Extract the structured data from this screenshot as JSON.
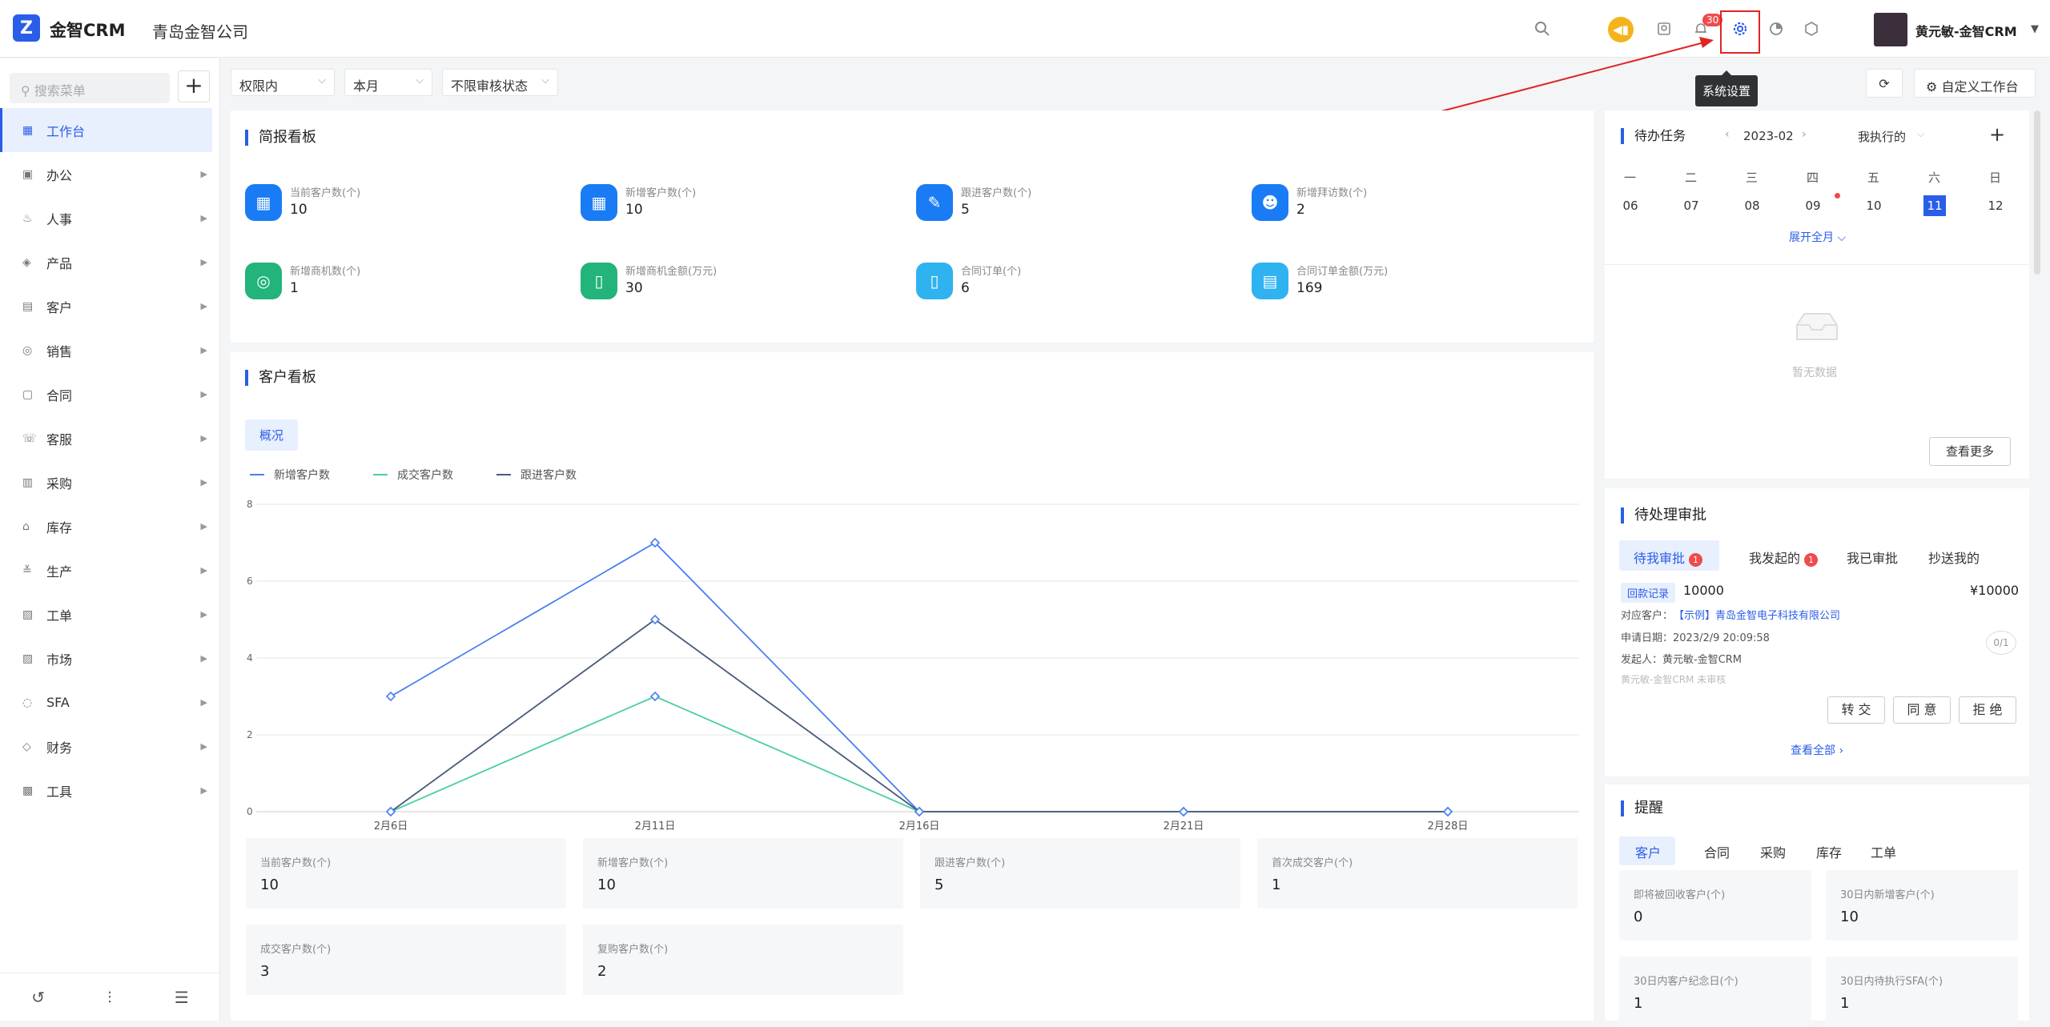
{
  "header": {
    "brand": "金智CRM",
    "company": "青岛金智公司",
    "notification_count": "30",
    "user_name": "黄元敏-金智CRM",
    "tooltip": "系统设置",
    "icons": [
      "search-icon",
      "speaker-icon",
      "contact-icon",
      "bell-icon",
      "gear-icon",
      "pie-chart-icon",
      "cube-icon",
      "caret-down-icon"
    ]
  },
  "sidebar": {
    "search_placeholder": "搜索菜单",
    "items": [
      {
        "label": "工作台",
        "icon": "▦",
        "active": true
      },
      {
        "label": "办公",
        "icon": "▣"
      },
      {
        "label": "人事",
        "icon": "♨"
      },
      {
        "label": "产品",
        "icon": "◈"
      },
      {
        "label": "客户",
        "icon": "▤"
      },
      {
        "label": "销售",
        "icon": "◎"
      },
      {
        "label": "合同",
        "icon": "▢"
      },
      {
        "label": "客服",
        "icon": "☏"
      },
      {
        "label": "采购",
        "icon": "▥"
      },
      {
        "label": "库存",
        "icon": "⌂"
      },
      {
        "label": "生产",
        "icon": "≚"
      },
      {
        "label": "工单",
        "icon": "▧"
      },
      {
        "label": "市场",
        "icon": "▨"
      },
      {
        "label": "SFA",
        "icon": "◌"
      },
      {
        "label": "财务",
        "icon": "◇"
      },
      {
        "label": "工具",
        "icon": "▩"
      }
    ]
  },
  "filters": {
    "scope": "权限内",
    "period": "本月",
    "audit": "不限审核状态"
  },
  "toolbar": {
    "custom_label": "自定义工作台"
  },
  "brief": {
    "title": "简报看板",
    "stats": [
      {
        "label": "当前客户数(个)",
        "value": "10",
        "color": "#1a7cf5",
        "icon": "▦"
      },
      {
        "label": "新增客户数(个)",
        "value": "10",
        "color": "#1a7cf5",
        "icon": "▦"
      },
      {
        "label": "跟进客户数(个)",
        "value": "5",
        "color": "#1a7cf5",
        "icon": "✎"
      },
      {
        "label": "新增拜访数(个)",
        "value": "2",
        "color": "#1a7cf5",
        "icon": "☻"
      },
      {
        "label": "新增商机数(个)",
        "value": "1",
        "color": "#22b47a",
        "icon": "◎"
      },
      {
        "label": "新增商机金额(万元)",
        "value": "30",
        "color": "#22b47a",
        "icon": "▯"
      },
      {
        "label": "合同订单(个)",
        "value": "6",
        "color": "#2fb3f0",
        "icon": "▯"
      },
      {
        "label": "合同订单金额(万元)",
        "value": "169",
        "color": "#2fb3f0",
        "icon": "▤"
      }
    ]
  },
  "customer_board": {
    "title": "客户看板",
    "tab": "概况",
    "boxes": [
      {
        "label": "当前客户数(个)",
        "value": "10"
      },
      {
        "label": "新增客户数(个)",
        "value": "10"
      },
      {
        "label": "跟进客户数(个)",
        "value": "5"
      },
      {
        "label": "首次成交客户(个)",
        "value": "1"
      },
      {
        "label": "成交客户数(个)",
        "value": "3"
      },
      {
        "label": "复购客户数(个)",
        "value": "2"
      }
    ]
  },
  "chart_data": {
    "type": "line",
    "categories": [
      "2月6日",
      "2月11日",
      "2月16日",
      "2月21日",
      "2月28日"
    ],
    "ylim": [
      0,
      8
    ],
    "yticks": [
      "0",
      "2",
      "4",
      "6",
      "8"
    ],
    "grid": true,
    "legend_position": "top-left",
    "series": [
      {
        "name": "新增客户数",
        "color": "#4a7ff0",
        "values": [
          3,
          7,
          0,
          0,
          0
        ]
      },
      {
        "name": "成交客户数",
        "color": "#4ccfa0",
        "values": [
          0,
          3,
          0,
          0,
          0
        ]
      },
      {
        "name": "跟进客户数",
        "color": "#4a5a7a",
        "values": [
          0,
          5,
          0,
          0,
          0
        ]
      }
    ]
  },
  "todo": {
    "title": "待办任务",
    "month": "2023-02",
    "filter": "我执行的",
    "weekdays": [
      "一",
      "二",
      "三",
      "四",
      "五",
      "六",
      "日"
    ],
    "days": [
      "06",
      "07",
      "08",
      "09",
      "10",
      "11",
      "12"
    ],
    "expand": "展开全月",
    "empty": "暂无数据",
    "more": "查看更多"
  },
  "approval": {
    "title": "待处理审批",
    "tabs": [
      {
        "label": "待我审批",
        "badge": "1"
      },
      {
        "label": "我发起的",
        "badge": "1"
      },
      {
        "label": "我已审批"
      },
      {
        "label": "抄送我的"
      }
    ],
    "tag": "回款记录",
    "amount": "10000",
    "money": "¥10000",
    "customer_label": "对应客户：",
    "customer": "【示例】青岛金智电子科技有限公司",
    "date": "申请日期：2023/2/9 20:09:58",
    "initiator": "发起人：黄元敏-金智CRM",
    "status": "黄元敏-金智CRM 未审核",
    "progress": "0/1",
    "buttons": [
      "转 交",
      "同 意",
      "拒 绝"
    ],
    "view_all": "查看全部"
  },
  "reminder": {
    "title": "提醒",
    "tabs": [
      "客户",
      "合同",
      "采购",
      "库存",
      "工单"
    ],
    "boxes": [
      {
        "label": "即将被回收客户(个)",
        "value": "0"
      },
      {
        "label": "30日内新增客户(个)",
        "value": "10"
      },
      {
        "label": "30日内客户纪念日(个)",
        "value": "1"
      },
      {
        "label": "30日内待执行SFA(个)",
        "value": "1"
      }
    ]
  }
}
